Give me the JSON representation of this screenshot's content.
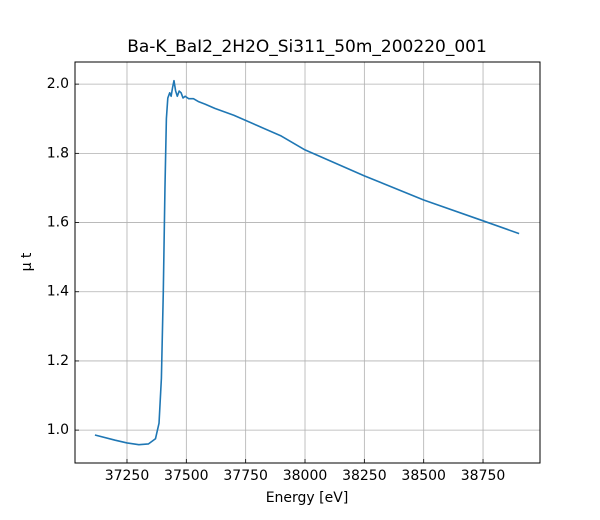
{
  "chart_data": {
    "type": "line",
    "title": "Ba-K_BaI2_2H2O_Si311_50m_200220_001",
    "xlabel": "Energy [eV]",
    "ylabel": "μ t",
    "x": [
      37115,
      37200,
      37250,
      37300,
      37340,
      37370,
      37385,
      37395,
      37403,
      37410,
      37416,
      37422,
      37430,
      37436,
      37442,
      37448,
      37455,
      37462,
      37470,
      37478,
      37486,
      37495,
      37510,
      37530,
      37550,
      37580,
      37620,
      37700,
      37800,
      37900,
      38000,
      38250,
      38500,
      38750,
      38902
    ],
    "series": [
      {
        "color": "#1f77b4",
        "values": [
          0.986,
          0.971,
          0.963,
          0.958,
          0.96,
          0.975,
          1.02,
          1.15,
          1.4,
          1.7,
          1.9,
          1.96,
          1.975,
          1.965,
          1.99,
          2.01,
          1.98,
          1.965,
          1.98,
          1.975,
          1.96,
          1.965,
          1.958,
          1.958,
          1.95,
          1.942,
          1.93,
          1.91,
          1.88,
          1.85,
          1.81,
          1.735,
          1.665,
          1.605,
          1.568
        ]
      }
    ],
    "xlim": [
      37031,
      38990
    ],
    "ylim": [
      0.905,
      2.064
    ],
    "xticks": [
      37250,
      37500,
      37750,
      38000,
      38250,
      38500,
      38750
    ],
    "yticks": [
      {
        "value": 1.0,
        "label": "1.0"
      },
      1.2,
      1.4,
      1.6,
      1.8,
      {
        "value": 2.0,
        "label": "2.0"
      }
    ],
    "grid": true
  }
}
